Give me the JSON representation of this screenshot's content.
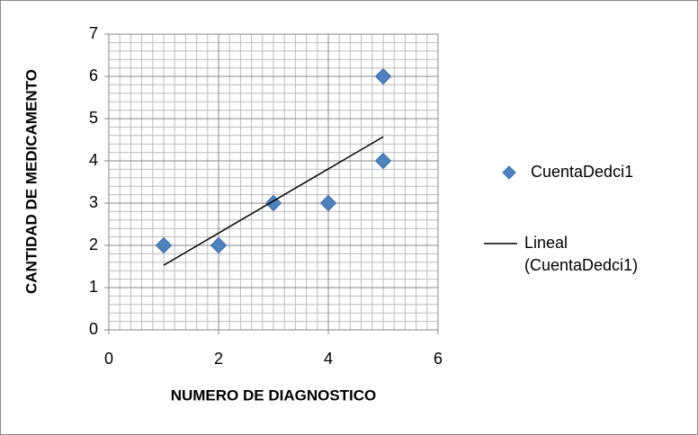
{
  "chart_data": {
    "type": "scatter",
    "x_label": "NUMERO DE DIAGNOSTICO",
    "y_label": "CANTIDAD DE MEDICAMENTO",
    "series": [
      {
        "name": "CuentaDedci1",
        "color": "#4f81bd",
        "x": [
          1,
          2,
          3,
          4,
          5,
          5
        ],
        "values": [
          2,
          2,
          3,
          3,
          6,
          4
        ]
      },
      {
        "name": "Lineal (CuentaDedci1)",
        "type": "line",
        "color": "#000000",
        "x": [
          1,
          5
        ],
        "values": [
          1.53,
          4.57
        ]
      }
    ],
    "xlim": [
      0,
      6
    ],
    "xticks": [
      0,
      2,
      4,
      6
    ],
    "ylim": [
      0,
      7
    ],
    "yticks": [
      0,
      1,
      2,
      3,
      4,
      5,
      6,
      7
    ],
    "grid": true,
    "minor_grid": true,
    "legend": "right"
  }
}
